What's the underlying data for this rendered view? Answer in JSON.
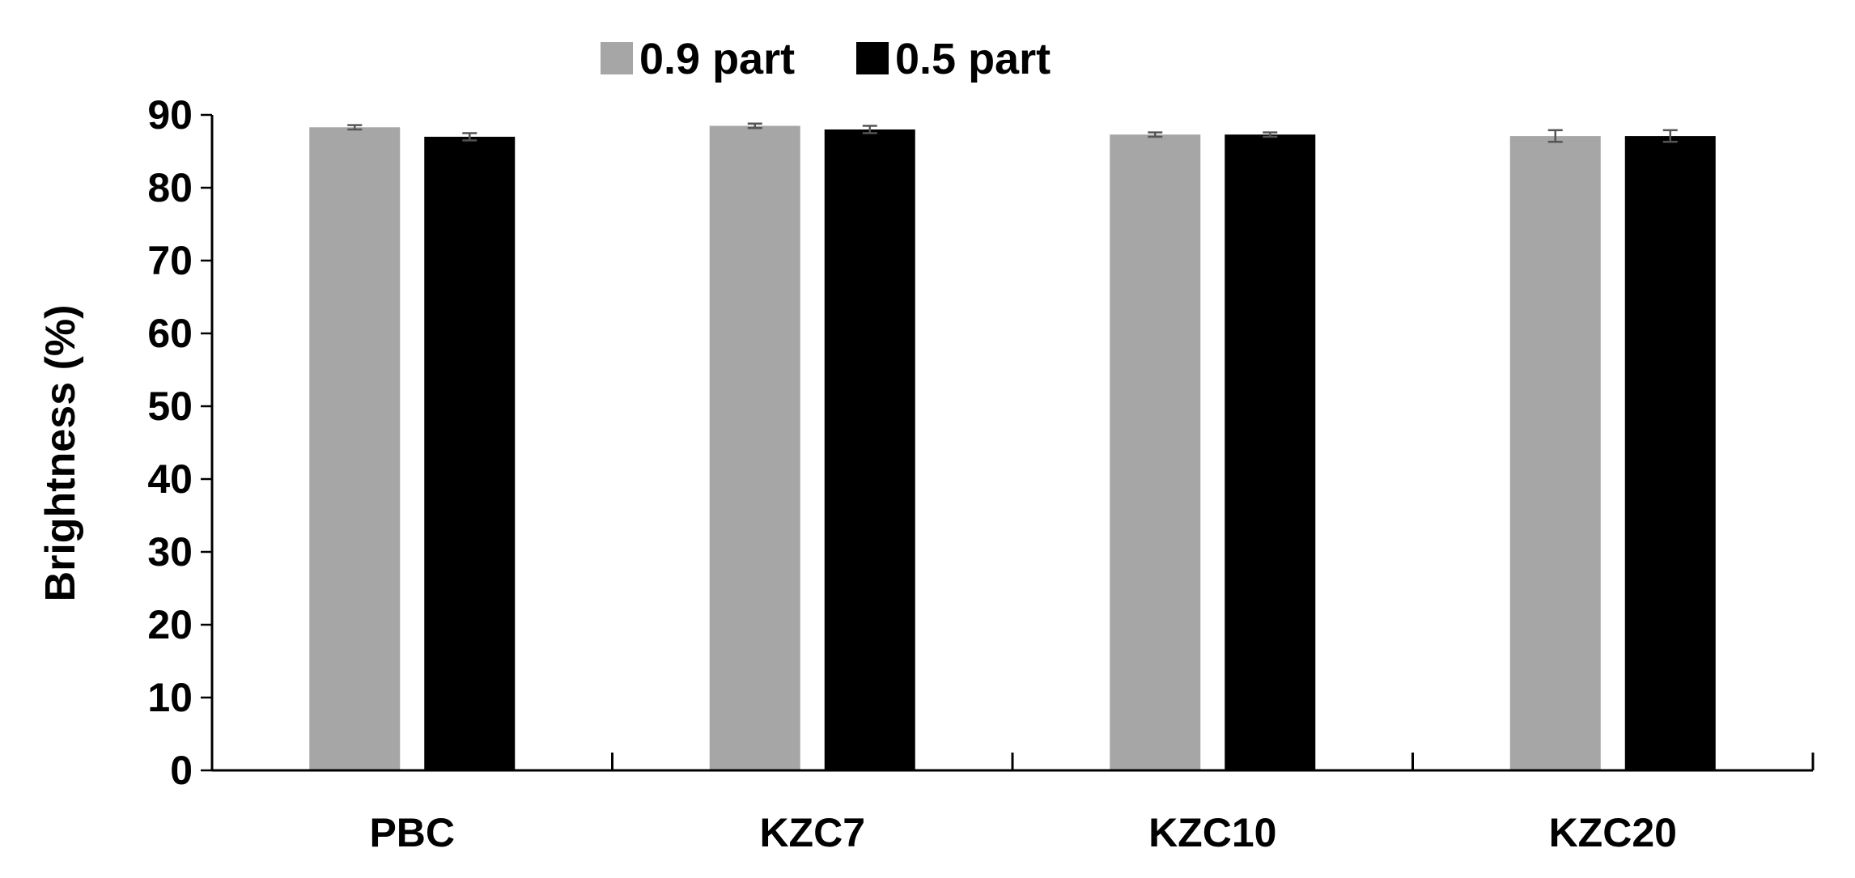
{
  "chart_data": {
    "type": "bar",
    "title": "",
    "xlabel": "",
    "ylabel": "Brightness (%)",
    "ylim": [
      0,
      90
    ],
    "yticks": [
      0,
      10,
      20,
      30,
      40,
      50,
      60,
      70,
      80,
      90
    ],
    "grid": false,
    "legend_position": "top-center",
    "categories": [
      "PBC",
      "KZC7",
      "KZC10",
      "KZC20"
    ],
    "series": [
      {
        "name": "0.9 part",
        "color": "#a6a6a6",
        "values": [
          88.3,
          88.5,
          87.3,
          87.1
        ],
        "errors": [
          0.3,
          0.3,
          0.3,
          0.8
        ]
      },
      {
        "name": "0.5 part",
        "color": "#000000",
        "values": [
          87.0,
          88.0,
          87.3,
          87.1
        ],
        "errors": [
          0.5,
          0.5,
          0.3,
          0.8
        ]
      }
    ]
  }
}
